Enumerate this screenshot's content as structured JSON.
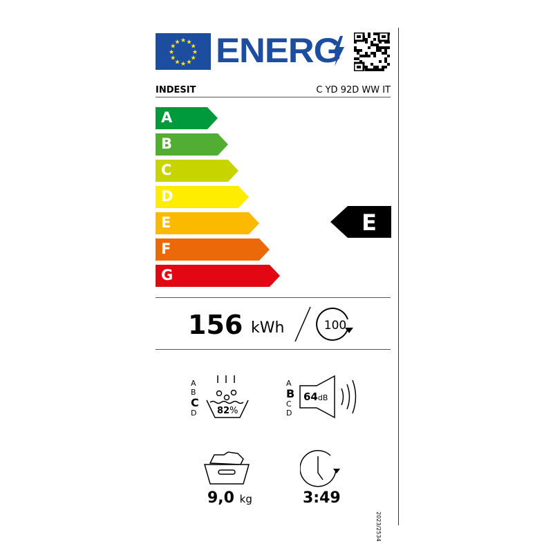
{
  "header": {
    "logo_text": "ENERG",
    "brand": "INDESIT",
    "model": "C YD 92D WW IT"
  },
  "scale": {
    "classes": [
      {
        "letter": "A",
        "color": "#009a3d"
      },
      {
        "letter": "B",
        "color": "#52ae32"
      },
      {
        "letter": "C",
        "color": "#c8d400"
      },
      {
        "letter": "D",
        "color": "#ffed00"
      },
      {
        "letter": "E",
        "color": "#fbba00"
      },
      {
        "letter": "F",
        "color": "#eb6909"
      },
      {
        "letter": "G",
        "color": "#e30613"
      }
    ],
    "rating": "E"
  },
  "energy": {
    "value": "156",
    "unit": "kWh",
    "cycles": "100"
  },
  "spin": {
    "classes": [
      "A",
      "B",
      "C",
      "D"
    ],
    "rating": "C",
    "value": "82",
    "unit": "%"
  },
  "noise": {
    "classes": [
      "A",
      "B",
      "C",
      "D"
    ],
    "rating": "B",
    "value": "64",
    "unit": "dB"
  },
  "capacity": {
    "value": "9,0",
    "unit": "kg"
  },
  "duration": {
    "value": "3:49"
  },
  "regulation": "2023/2534"
}
